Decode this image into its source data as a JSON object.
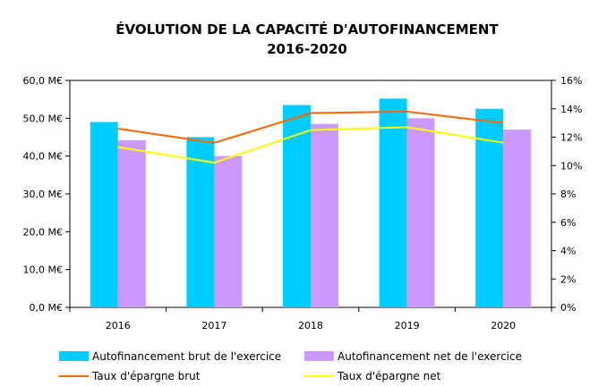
{
  "chart_data": {
    "type": "bar",
    "title": [
      "ÉVOLUTION DE LA CAPACITÉ D'AUTOFINANCEMENT",
      "2016-2020"
    ],
    "categories": [
      "2016",
      "2017",
      "2018",
      "2019",
      "2020"
    ],
    "y_left": {
      "min": 0,
      "max": 60,
      "step": 10,
      "tick_labels": [
        "0,0 M€",
        "10,0 M€",
        "20,0 M€",
        "30,0 M€",
        "40,0 M€",
        "50,0 M€",
        "60,0 M€"
      ]
    },
    "y_right": {
      "min": 0,
      "max": 16,
      "step": 2,
      "tick_labels": [
        "0%",
        "2%",
        "4%",
        "6%",
        "8%",
        "10%",
        "12%",
        "14%",
        "16%"
      ]
    },
    "bar_series": [
      {
        "name": "Autofinancement brut de l'exercice",
        "color": "#00ccff",
        "values": [
          49.0,
          45.0,
          53.5,
          55.2,
          52.5
        ]
      },
      {
        "name": "Autofinancement net de l'exercice",
        "color": "#cc99ff",
        "values": [
          44.2,
          40.0,
          48.5,
          50.0,
          47.0
        ]
      }
    ],
    "line_series": [
      {
        "name": "Taux d'épargne brut",
        "color": "#ff6600",
        "axis": "right",
        "values": [
          12.6,
          11.6,
          13.7,
          13.8,
          13.0
        ]
      },
      {
        "name": "Taux d'épargne net",
        "color": "#ffff00",
        "axis": "right",
        "values": [
          11.3,
          10.2,
          12.5,
          12.7,
          11.6
        ]
      }
    ],
    "gridlines": false
  }
}
